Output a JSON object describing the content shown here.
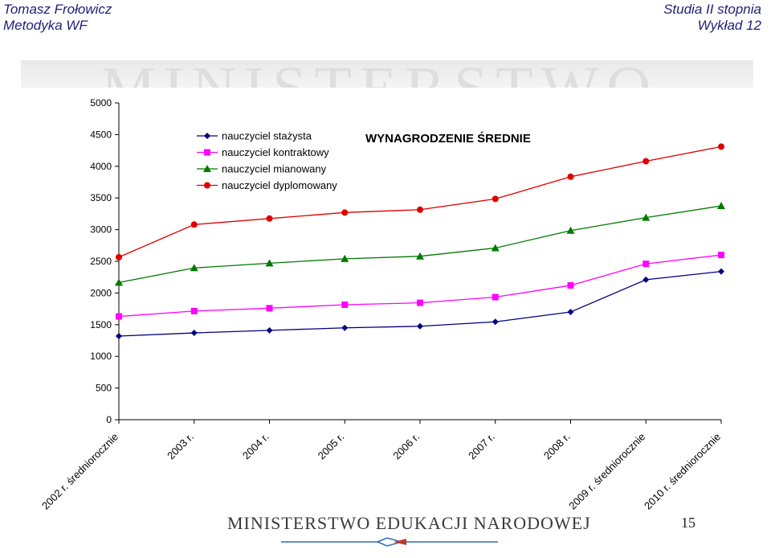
{
  "header": {
    "left_line1": "Tomasz Frołowicz",
    "left_line2": "Metodyka WF",
    "right_line1": "Studia II stopnia",
    "right_line2": "Wykład 12"
  },
  "banner_text": "MINISTERSTWO",
  "footer": {
    "title": "MINISTERSTWO EDUKACJI NARODOWEJ",
    "page_number": "15"
  },
  "chart_data": {
    "type": "line",
    "title": "WYNAGRODZENIE ŚREDNIE",
    "xlabel": "",
    "ylabel": "",
    "ylim": [
      0,
      5000
    ],
    "yticks": [
      0,
      500,
      1000,
      1500,
      2000,
      2500,
      3000,
      3500,
      4000,
      4500,
      5000
    ],
    "grid": false,
    "legend_position": "top-left",
    "categories": [
      "2002 r. średniorocznie",
      "2003 r.",
      "2004 r.",
      "2005 r.",
      "2006 r.",
      "2007 r.",
      "2008 r.",
      "2009 r. średniorocznie",
      "2010 r. średniorocznie"
    ],
    "series": [
      {
        "name": "nauczyciel stażysta",
        "color": "#000080",
        "marker": "diamond",
        "values": [
          1320,
          1370,
          1410,
          1450,
          1475,
          1545,
          1700,
          2210,
          2340
        ]
      },
      {
        "name": "nauczyciel kontraktowy",
        "color": "#ff00ff",
        "marker": "square",
        "values": [
          1630,
          1715,
          1760,
          1815,
          1845,
          1935,
          2120,
          2460,
          2600
        ]
      },
      {
        "name": "nauczyciel mianowany",
        "color": "#007a00",
        "marker": "triangle",
        "values": [
          2165,
          2395,
          2470,
          2540,
          2580,
          2710,
          2985,
          3190,
          3375
        ]
      },
      {
        "name": "nauczyciel dyplomowany",
        "color": "#e00000",
        "marker": "circle",
        "values": [
          2565,
          3080,
          3175,
          3270,
          3315,
          3485,
          3835,
          4080,
          4310
        ]
      }
    ]
  }
}
